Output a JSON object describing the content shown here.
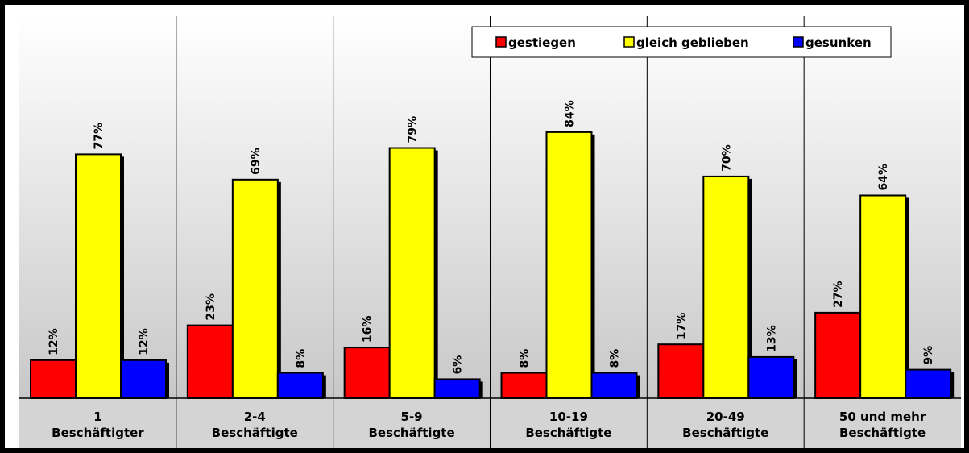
{
  "chart_data": {
    "type": "bar",
    "title": "",
    "xlabel": "",
    "ylabel": "",
    "ylim": [
      0,
      90
    ],
    "grid": false,
    "legend_position": "top-right",
    "categories": [
      [
        "1",
        "Beschäftigter"
      ],
      [
        "2-4",
        "Beschäftigte"
      ],
      [
        "5-9",
        "Beschäftigte"
      ],
      [
        "10-19",
        "Beschäftigte"
      ],
      [
        "20-49",
        "Beschäftigte"
      ],
      [
        "50 und mehr",
        "Beschäftigte"
      ]
    ],
    "series": [
      {
        "name": "gestiegen",
        "color": "#ff0000",
        "values": [
          12,
          23,
          16,
          8,
          17,
          27
        ],
        "labels": [
          "12%",
          "23%",
          "16%",
          "8%",
          "17%",
          "27%"
        ]
      },
      {
        "name": "gleich geblieben",
        "color": "#ffff00",
        "values": [
          77,
          69,
          79,
          84,
          70,
          64
        ],
        "labels": [
          "77%",
          "69%",
          "79%",
          "84%",
          "70%",
          "64%"
        ]
      },
      {
        "name": "gesunken",
        "color": "#0000ff",
        "values": [
          12,
          8,
          6,
          8,
          13,
          9
        ],
        "labels": [
          "12%",
          "8%",
          "6%",
          "8%",
          "13%",
          "9%"
        ]
      }
    ]
  }
}
